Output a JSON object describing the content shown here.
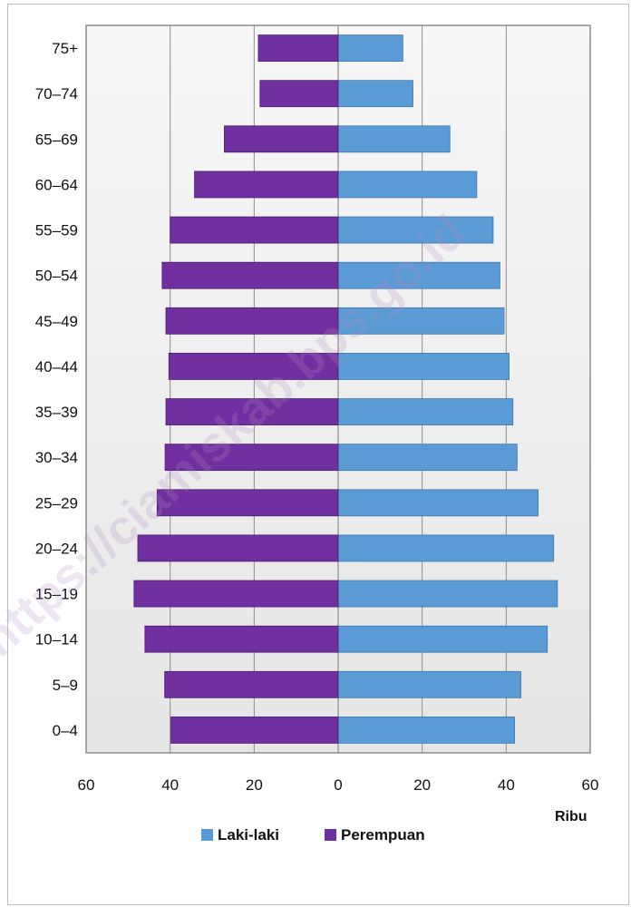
{
  "chart_data": {
    "type": "bar",
    "orientation": "horizontal-population-pyramid",
    "categories": [
      "0–4",
      "5–9",
      "10–14",
      "15–19",
      "20–24",
      "25–29",
      "30–34",
      "35–39",
      "40–44",
      "45–49",
      "50–54",
      "55–59",
      "60–64",
      "65–69",
      "70–74",
      "75+"
    ],
    "series": [
      {
        "name": "Laki-laki",
        "color": "#5b9bd5",
        "side": "right",
        "values": [
          42.0,
          43.5,
          49.8,
          52.2,
          51.3,
          47.6,
          42.6,
          41.6,
          40.7,
          39.5,
          38.5,
          36.9,
          33.0,
          26.6,
          17.8,
          15.4
        ]
      },
      {
        "name": "Perempuan",
        "color": "#7030a0",
        "side": "left",
        "values": [
          39.8,
          41.3,
          46.0,
          48.6,
          47.7,
          43.1,
          41.2,
          41.0,
          40.3,
          41.0,
          41.9,
          40.0,
          34.2,
          27.1,
          18.6,
          19.0
        ]
      }
    ],
    "x_ticks": [
      "60",
      "40",
      "20",
      "0",
      "20",
      "40",
      "60"
    ],
    "xlim": [
      -60,
      60
    ],
    "unit_label": "Ribu",
    "legend_position": "bottom",
    "grid": true
  },
  "watermark": "https://ciamiskab.bps.go.id",
  "colors": {
    "plot_bg_top": "#f7f7f7",
    "plot_bg_bottom": "#e6e6e6",
    "grid": "#8c8c8c",
    "axis": "#8c8c8c"
  }
}
